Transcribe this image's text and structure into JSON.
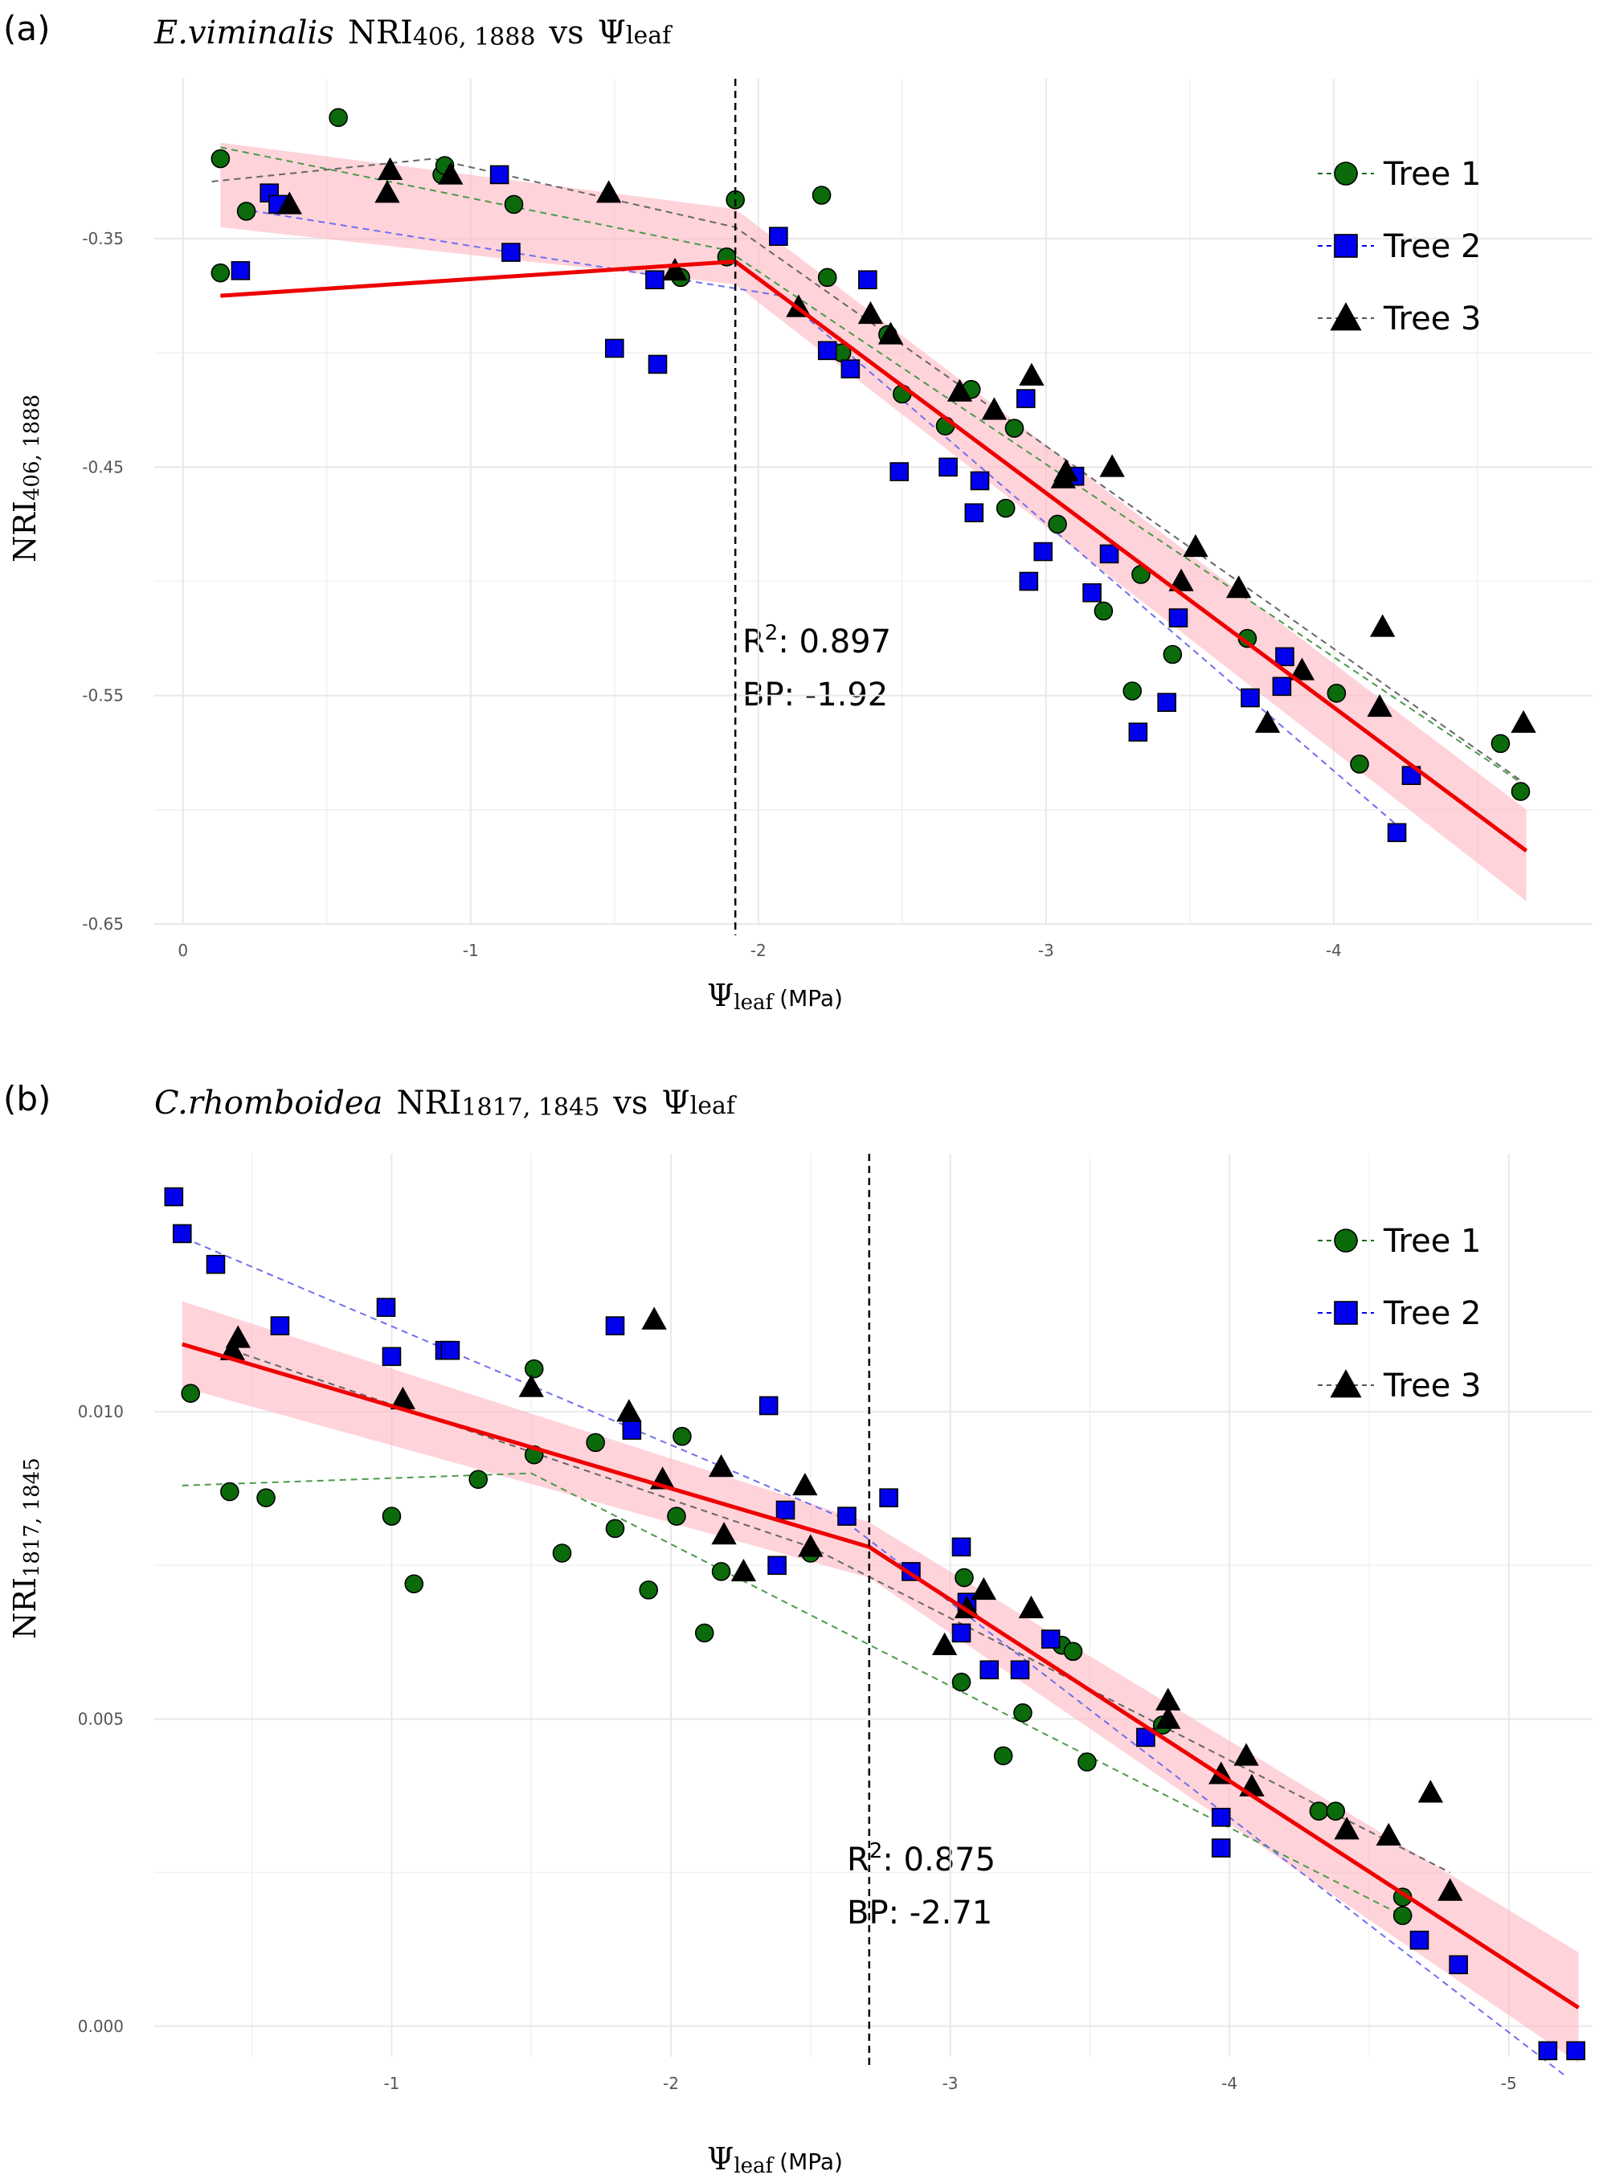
{
  "colors": {
    "tree1": "#0b6b0b",
    "tree2": "#0000ee",
    "tree3": "#000000",
    "fit": "#ee0000",
    "ribbon": "#ffb6c1",
    "grid": "#e8e8e8"
  },
  "chart_data": [
    {
      "panel_label": "(a)",
      "type": "scatter",
      "title_species": "E.viminalis",
      "title_index": "NRI",
      "title_bands": "406, 1888",
      "title_vs": "vs",
      "title_psi": "Ψ",
      "title_psi_sub": "leaf",
      "xlabel_psi": "Ψ",
      "xlabel_sub": "leaf",
      "xlabel_unit": "(MPa)",
      "ylabel_main": "NRI",
      "ylabel_sub": "406, 1888",
      "xlim": [
        0.1,
        -4.9
      ],
      "ylim": [
        -0.65,
        -0.28
      ],
      "x_ticks": [
        0,
        -1,
        -2,
        -3,
        -4
      ],
      "x_tick_labels": [
        "0",
        "-1",
        "-2",
        "-3",
        "-4"
      ],
      "y_ticks": [
        -0.35,
        -0.45,
        -0.55,
        -0.65
      ],
      "y_tick_labels": [
        "-0.35",
        "-0.45",
        "-0.55",
        "-0.65"
      ],
      "grid": true,
      "breakpoint": -1.92,
      "r2_label": "R",
      "r2_sup": "2",
      "r2_value": ": 0.897",
      "bp_text": "BP: -1.92",
      "legend_position": "top-right",
      "legend": [
        "Tree 1",
        "Tree 2",
        "Tree 3"
      ],
      "fit": {
        "x": [
          -0.13,
          -1.92,
          -4.67
        ],
        "y": [
          -0.375,
          -0.36,
          -0.618
        ]
      },
      "ribbon": {
        "x": [
          -0.13,
          -1.92,
          -4.67
        ],
        "upper": [
          -0.308,
          -0.337,
          -0.6
        ],
        "lower": [
          -0.345,
          -0.37,
          -0.64
        ]
      },
      "series": [
        {
          "name": "Tree 1",
          "marker": "circle",
          "points": [
            [
              -0.13,
              -0.365
            ],
            [
              -0.13,
              -0.315
            ],
            [
              -0.22,
              -0.338
            ],
            [
              -0.54,
              -0.297
            ],
            [
              -0.9,
              -0.322
            ],
            [
              -0.91,
              -0.318
            ],
            [
              -1.15,
              -0.335
            ],
            [
              -1.73,
              -0.367
            ],
            [
              -1.92,
              -0.333
            ],
            [
              -1.89,
              -0.358
            ],
            [
              -2.22,
              -0.331
            ],
            [
              -2.24,
              -0.367
            ],
            [
              -2.29,
              -0.4
            ],
            [
              -2.45,
              -0.392
            ],
            [
              -2.5,
              -0.418
            ],
            [
              -2.65,
              -0.432
            ],
            [
              -2.74,
              -0.416
            ],
            [
              -2.86,
              -0.468
            ],
            [
              -2.89,
              -0.433
            ],
            [
              -3.04,
              -0.475
            ],
            [
              -3.2,
              -0.513
            ],
            [
              -3.3,
              -0.548
            ],
            [
              -3.33,
              -0.497
            ],
            [
              -3.44,
              -0.532
            ],
            [
              -3.7,
              -0.525
            ],
            [
              -4.01,
              -0.549
            ],
            [
              -4.09,
              -0.58
            ],
            [
              -4.58,
              -0.571
            ],
            [
              -4.65,
              -0.592
            ]
          ],
          "fit": {
            "x": [
              -0.13,
              -1.89,
              -4.65
            ],
            "y": [
              -0.31,
              -0.355,
              -0.588
            ]
          }
        },
        {
          "name": "Tree 2",
          "marker": "square",
          "points": [
            [
              -0.2,
              -0.364
            ],
            [
              -0.3,
              -0.33
            ],
            [
              -0.33,
              -0.335
            ],
            [
              -1.1,
              -0.322
            ],
            [
              -1.14,
              -0.356
            ],
            [
              -1.5,
              -0.398
            ],
            [
              -1.64,
              -0.368
            ],
            [
              -1.65,
              -0.405
            ],
            [
              -2.07,
              -0.349
            ],
            [
              -2.24,
              -0.399
            ],
            [
              -2.32,
              -0.407
            ],
            [
              -2.38,
              -0.368
            ],
            [
              -2.49,
              -0.452
            ],
            [
              -2.66,
              -0.45
            ],
            [
              -2.75,
              -0.47
            ],
            [
              -2.77,
              -0.456
            ],
            [
              -2.93,
              -0.42
            ],
            [
              -2.94,
              -0.5
            ],
            [
              -2.99,
              -0.487
            ],
            [
              -3.1,
              -0.454
            ],
            [
              -3.16,
              -0.505
            ],
            [
              -3.22,
              -0.488
            ],
            [
              -3.32,
              -0.566
            ],
            [
              -3.42,
              -0.553
            ],
            [
              -3.46,
              -0.516
            ],
            [
              -3.71,
              -0.551
            ],
            [
              -3.82,
              -0.546
            ],
            [
              -3.83,
              -0.533
            ],
            [
              -4.22,
              -0.61
            ],
            [
              -4.27,
              -0.585
            ]
          ],
          "fit": {
            "x": [
              -0.2,
              -2.08,
              -4.25
            ],
            "y": [
              -0.337,
              -0.375,
              -0.61
            ]
          }
        },
        {
          "name": "Tree 3",
          "marker": "triangle",
          "points": [
            [
              -0.37,
              -0.335
            ],
            [
              -0.71,
              -0.33
            ],
            [
              -0.72,
              -0.32
            ],
            [
              -0.93,
              -0.322
            ],
            [
              -1.48,
              -0.33
            ],
            [
              -1.71,
              -0.364
            ],
            [
              -2.14,
              -0.38
            ],
            [
              -2.39,
              -0.383
            ],
            [
              -2.46,
              -0.392
            ],
            [
              -2.7,
              -0.417
            ],
            [
              -2.82,
              -0.425
            ],
            [
              -2.95,
              -0.41
            ],
            [
              -3.06,
              -0.455
            ],
            [
              -3.07,
              -0.452
            ],
            [
              -3.23,
              -0.45
            ],
            [
              -3.47,
              -0.5
            ],
            [
              -3.52,
              -0.485
            ],
            [
              -3.67,
              -0.503
            ],
            [
              -3.77,
              -0.562
            ],
            [
              -3.89,
              -0.539
            ],
            [
              -4.16,
              -0.555
            ],
            [
              -4.17,
              -0.52
            ],
            [
              -4.66,
              -0.562
            ]
          ],
          "fit": {
            "x": [
              -0.1,
              -0.87,
              -1.92,
              -4.66
            ],
            "y": [
              -0.325,
              -0.315,
              -0.345,
              -0.588
            ]
          }
        }
      ]
    },
    {
      "panel_label": "(b)",
      "type": "scatter",
      "title_species": "C.rhomboidea",
      "title_index": "NRI",
      "title_bands": "1817, 1845",
      "title_vs": "vs",
      "title_psi": "Ψ",
      "title_psi_sub": "leaf",
      "xlabel_psi": "Ψ",
      "xlabel_sub": "leaf",
      "xlabel_unit": "(MPa)",
      "ylabel_main": "NRI",
      "ylabel_sub": "1817, 1845",
      "xlim": [
        -0.15,
        -5.3
      ],
      "ylim": [
        -0.0005,
        0.0142
      ],
      "x_ticks": [
        -1,
        -2,
        -3,
        -4,
        -5
      ],
      "x_tick_labels": [
        "-1",
        "-2",
        "-3",
        "-4",
        "-5"
      ],
      "y_ticks": [
        0.0,
        0.005,
        0.01
      ],
      "y_tick_labels": [
        "0.000",
        "0.005",
        "0.010"
      ],
      "grid": true,
      "breakpoint": -2.71,
      "r2_label": "R",
      "r2_sup": "2",
      "r2_value": ": 0.875",
      "bp_text": "BP: -2.71",
      "legend_position": "top-right",
      "legend": [
        "Tree 1",
        "Tree 2",
        "Tree 3"
      ],
      "fit": {
        "x": [
          -0.25,
          -2.71,
          -5.25
        ],
        "y": [
          0.0111,
          0.0078,
          0.0003
        ]
      },
      "ribbon": {
        "x": [
          -0.25,
          -2.71,
          -5.25
        ],
        "upper": [
          0.0118,
          0.0082,
          0.0012
        ],
        "lower": [
          0.0104,
          0.0073,
          -0.0006
        ]
      },
      "series": [
        {
          "name": "Tree 1",
          "marker": "circle",
          "points": [
            [
              -0.28,
              0.0103
            ],
            [
              -0.42,
              0.0087
            ],
            [
              -0.55,
              0.0086
            ],
            [
              -1.0,
              0.0083
            ],
            [
              -1.08,
              0.0072
            ],
            [
              -1.31,
              0.0089
            ],
            [
              -1.51,
              0.0107
            ],
            [
              -1.51,
              0.0093
            ],
            [
              -1.61,
              0.0077
            ],
            [
              -1.73,
              0.0095
            ],
            [
              -1.8,
              0.0081
            ],
            [
              -1.92,
              0.0071
            ],
            [
              -2.02,
              0.0083
            ],
            [
              -2.04,
              0.0096
            ],
            [
              -2.12,
              0.0064
            ],
            [
              -2.18,
              0.0074
            ],
            [
              -2.5,
              0.0077
            ],
            [
              -3.04,
              0.0056
            ],
            [
              -3.05,
              0.0073
            ],
            [
              -3.19,
              0.0044
            ],
            [
              -3.26,
              0.0051
            ],
            [
              -3.4,
              0.0062
            ],
            [
              -3.44,
              0.0061
            ],
            [
              -3.49,
              0.0043
            ],
            [
              -3.76,
              0.0049
            ],
            [
              -4.32,
              0.0035
            ],
            [
              -4.38,
              0.0035
            ],
            [
              -4.62,
              0.0018
            ],
            [
              -4.62,
              0.0021
            ]
          ],
          "fit": {
            "x": [
              -0.25,
              -1.5,
              -4.62
            ],
            "y": [
              0.0088,
              0.009,
              0.0018
            ]
          }
        },
        {
          "name": "Tree 2",
          "marker": "square",
          "points": [
            [
              -0.22,
              0.0135
            ],
            [
              -0.25,
              0.0129
            ],
            [
              -0.37,
              0.0124
            ],
            [
              -0.6,
              0.0114
            ],
            [
              -0.98,
              0.0117
            ],
            [
              -1.0,
              0.0109
            ],
            [
              -1.19,
              0.011
            ],
            [
              -1.21,
              0.011
            ],
            [
              -1.8,
              0.0114
            ],
            [
              -1.86,
              0.0097
            ],
            [
              -2.35,
              0.0101
            ],
            [
              -2.38,
              0.0075
            ],
            [
              -2.41,
              0.0084
            ],
            [
              -2.63,
              0.0083
            ],
            [
              -2.78,
              0.0086
            ],
            [
              -2.86,
              0.0074
            ],
            [
              -3.04,
              0.0078
            ],
            [
              -3.04,
              0.0064
            ],
            [
              -3.06,
              0.0069
            ],
            [
              -3.14,
              0.0058
            ],
            [
              -3.25,
              0.0058
            ],
            [
              -3.36,
              0.0063
            ],
            [
              -3.7,
              0.0047
            ],
            [
              -3.97,
              0.0034
            ],
            [
              -3.97,
              0.0029
            ],
            [
              -4.68,
              0.0014
            ],
            [
              -4.82,
              0.001
            ],
            [
              -5.14,
              -0.0004
            ],
            [
              -5.24,
              -0.0004
            ]
          ],
          "fit": {
            "x": [
              -0.22,
              -2.6,
              -5.2
            ],
            "y": [
              0.0129,
              0.0083,
              -0.0008
            ]
          }
        },
        {
          "name": "Tree 3",
          "marker": "triangle",
          "points": [
            [
              -0.43,
              0.011
            ],
            [
              -0.45,
              0.0112
            ],
            [
              -1.04,
              0.0102
            ],
            [
              -1.5,
              0.0104
            ],
            [
              -1.85,
              0.01
            ],
            [
              -1.94,
              0.0115
            ],
            [
              -1.97,
              0.0089
            ],
            [
              -2.18,
              0.0091
            ],
            [
              -2.19,
              0.008
            ],
            [
              -2.26,
              0.0074
            ],
            [
              -2.48,
              0.0088
            ],
            [
              -2.5,
              0.0078
            ],
            [
              -2.98,
              0.0062
            ],
            [
              -3.06,
              0.0068
            ],
            [
              -3.12,
              0.0071
            ],
            [
              -3.29,
              0.0068
            ],
            [
              -3.78,
              0.0053
            ],
            [
              -3.78,
              0.005
            ],
            [
              -3.97,
              0.0041
            ],
            [
              -4.06,
              0.0044
            ],
            [
              -4.08,
              0.0039
            ],
            [
              -4.42,
              0.0032
            ],
            [
              -4.57,
              0.0031
            ],
            [
              -4.72,
              0.0038
            ],
            [
              -4.79,
              0.0022
            ]
          ],
          "fit": {
            "x": [
              -0.43,
              -2.5,
              -4.79
            ],
            "y": [
              0.011,
              0.0078,
              0.0025
            ]
          }
        }
      ]
    }
  ]
}
